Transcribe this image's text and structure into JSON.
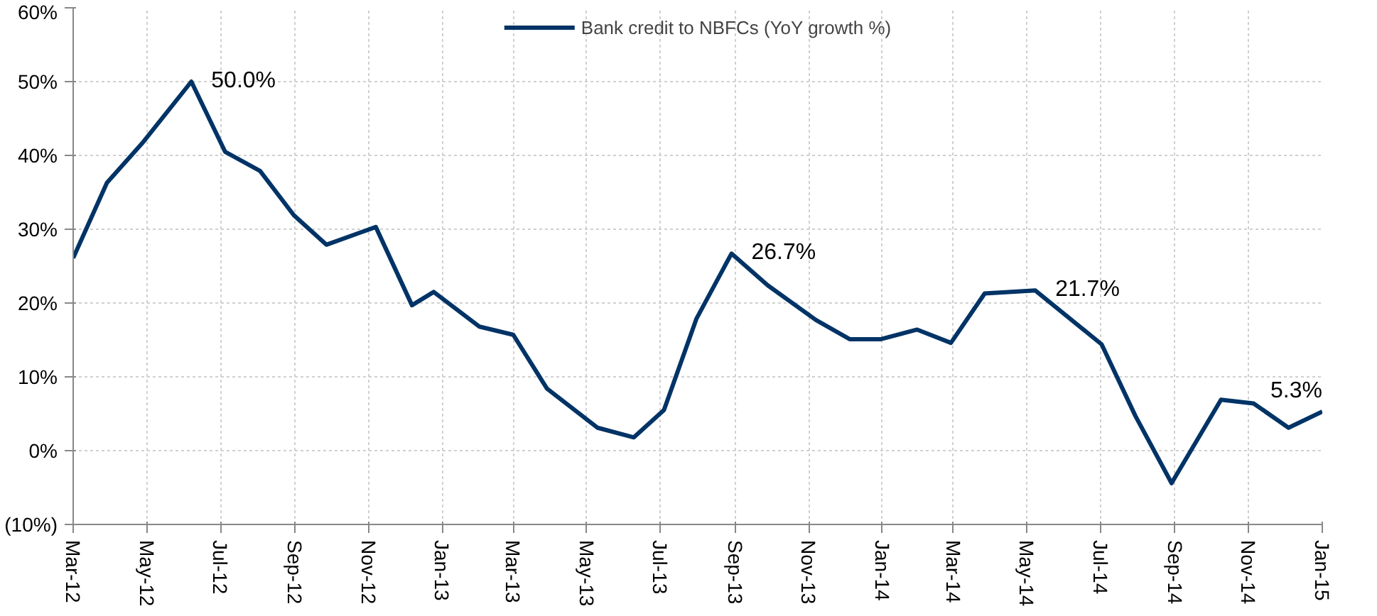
{
  "chart_data": {
    "type": "line",
    "x": [
      "2012-03-01",
      "2012-03-29",
      "2012-04-27",
      "2012-06-07",
      "2012-07-05",
      "2012-08-03",
      "2012-08-31",
      "2012-09-27",
      "2012-11-07",
      "2012-12-07",
      "2012-12-25",
      "2013-02-01",
      "2013-03-01",
      "2013-03-29",
      "2013-05-10",
      "2013-06-09",
      "2013-07-04",
      "2013-07-31",
      "2013-08-29",
      "2013-09-28",
      "2013-11-07",
      "2013-12-05",
      "2013-12-31",
      "2014-01-30",
      "2014-02-27",
      "2014-03-27",
      "2014-05-08",
      "2014-07-02",
      "2014-07-30",
      "2014-08-29",
      "2014-10-09",
      "2014-11-05",
      "2014-12-04",
      "2015-01-01"
    ],
    "series": [
      {
        "name": "Bank credit to NBFCs (YoY growth %)",
        "color": "#003366",
        "values": [
          26.1,
          36.3,
          41.6,
          50.0,
          40.5,
          37.9,
          31.9,
          27.9,
          30.3,
          19.7,
          21.5,
          16.8,
          15.7,
          8.4,
          3.1,
          1.8,
          5.5,
          17.9,
          26.7,
          22.4,
          17.7,
          15.1,
          15.1,
          16.4,
          14.6,
          21.3,
          21.7,
          14.4,
          4.7,
          -4.4,
          6.9,
          6.4,
          3.1,
          5.3
        ]
      }
    ],
    "ylim": [
      -10,
      60
    ],
    "yticks": [
      {
        "value": -10,
        "label": "(10%)"
      },
      {
        "value": 0,
        "label": "0%"
      },
      {
        "value": 10,
        "label": "10%"
      },
      {
        "value": 20,
        "label": "20%"
      },
      {
        "value": 30,
        "label": "30%"
      },
      {
        "value": 40,
        "label": "40%"
      },
      {
        "value": 50,
        "label": "50%"
      },
      {
        "value": 60,
        "label": "60%"
      }
    ],
    "xlim": [
      "2012-03-01",
      "2015-01-01"
    ],
    "xticks": [
      {
        "value": "2012-03-01",
        "label": "Mar-12"
      },
      {
        "value": "2012-05-01",
        "label": "May-12"
      },
      {
        "value": "2012-07-01",
        "label": "Jul-12"
      },
      {
        "value": "2012-09-01",
        "label": "Sep-12"
      },
      {
        "value": "2012-11-01",
        "label": "Nov-12"
      },
      {
        "value": "2013-01-01",
        "label": "Jan-13"
      },
      {
        "value": "2013-03-01",
        "label": "Mar-13"
      },
      {
        "value": "2013-05-01",
        "label": "May-13"
      },
      {
        "value": "2013-07-01",
        "label": "Jul-13"
      },
      {
        "value": "2013-09-01",
        "label": "Sep-13"
      },
      {
        "value": "2013-11-01",
        "label": "Nov-13"
      },
      {
        "value": "2014-01-01",
        "label": "Jan-14"
      },
      {
        "value": "2014-03-01",
        "label": "Mar-14"
      },
      {
        "value": "2014-05-01",
        "label": "May-14"
      },
      {
        "value": "2014-07-01",
        "label": "Jul-14"
      },
      {
        "value": "2014-09-01",
        "label": "Sep-14"
      },
      {
        "value": "2014-11-01",
        "label": "Nov-14"
      },
      {
        "value": "2015-01-01",
        "label": "Jan-15"
      }
    ],
    "annotations": [
      {
        "text": "50.0%",
        "x": "2012-06-07",
        "y": 50.0
      },
      {
        "text": "26.7%",
        "x": "2013-08-29",
        "y": 26.7
      },
      {
        "text": "21.7%",
        "x": "2014-05-08",
        "y": 21.7
      },
      {
        "text": "5.3%",
        "x": "2015-01-01",
        "y": 5.3
      }
    ],
    "grid": true,
    "legend": "top",
    "marker": "none",
    "line_style": "solid"
  }
}
